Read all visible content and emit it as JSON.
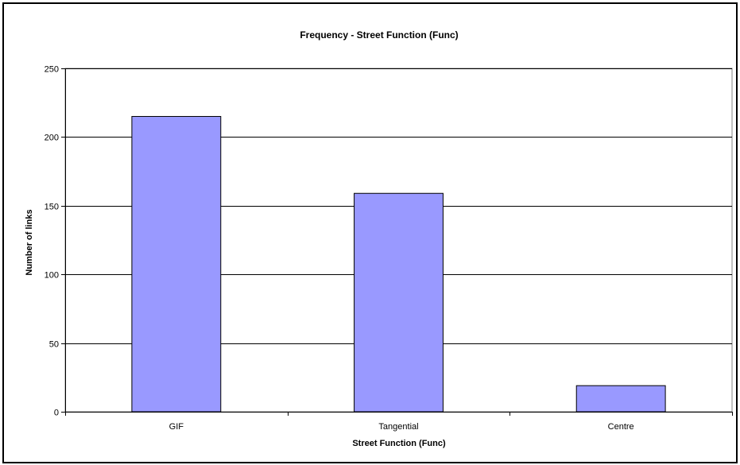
{
  "chart_data": {
    "type": "bar",
    "title": "Frequency - Street Function (Func)",
    "xlabel": "Street Function (Func)",
    "ylabel": "Number of links",
    "categories": [
      "GIF",
      "Tangential",
      "Centre"
    ],
    "values": [
      215,
      159,
      19
    ],
    "ylim": [
      0,
      250
    ],
    "yticks": [
      "0",
      "50",
      "100",
      "150",
      "200",
      "250"
    ],
    "grid": true,
    "legend": "none",
    "colors": {
      "bar_fill": "#9999ff",
      "bar_stroke": "#000000",
      "grid": "#000000",
      "plot_border": "#808080"
    }
  }
}
